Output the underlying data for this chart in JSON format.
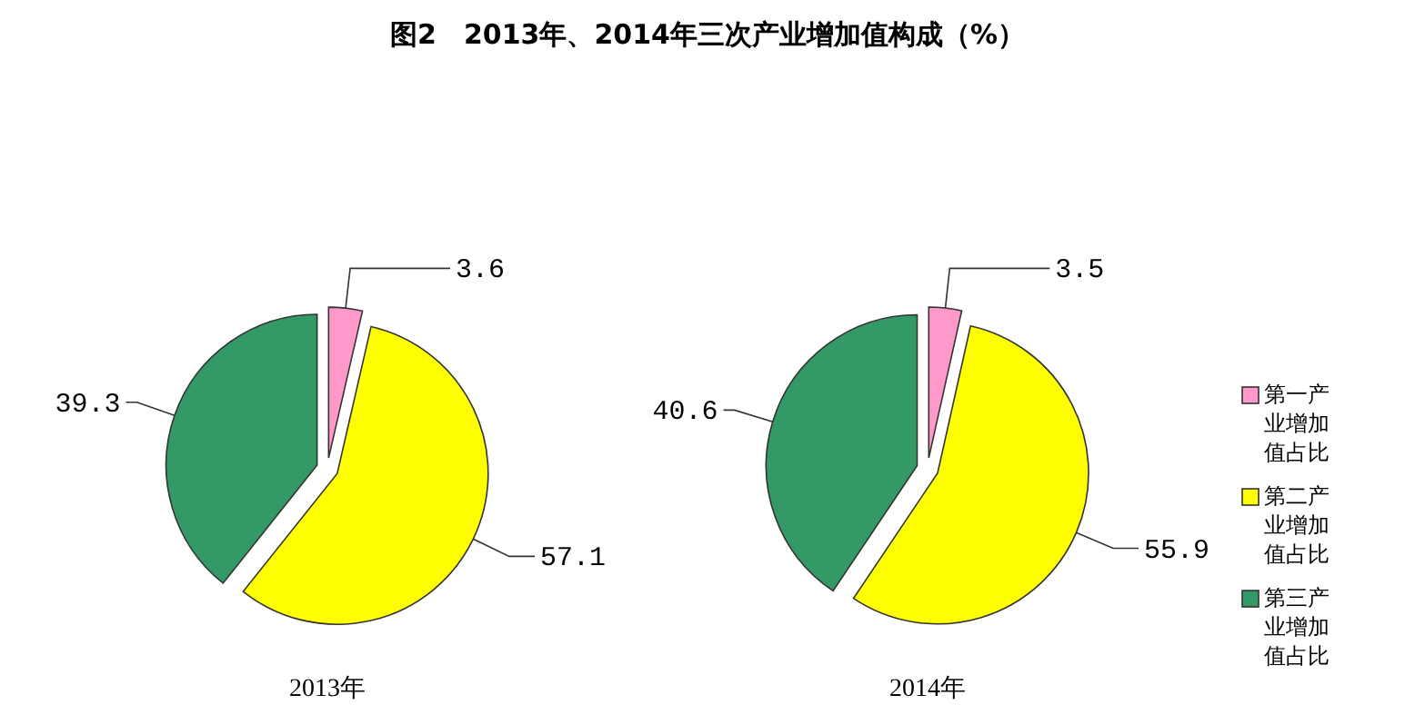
{
  "chart_data": [
    {
      "type": "pie",
      "title": "图2　2013年、2014年三次产业增加值构成（%）",
      "subtitle": "2013年",
      "categories": [
        null,
        null,
        null
      ],
      "values": [
        3.6,
        57.1,
        39.3
      ],
      "colors": [
        "#ff99cc",
        "#ffff00",
        "#339966"
      ],
      "data_labels": true
    },
    {
      "type": "pie",
      "subtitle": "2014年",
      "categories": [
        "第一产业增加值占比",
        "第二产业增加值占比",
        "第三产业增加值占比"
      ],
      "values": [
        3.5,
        55.9,
        40.6
      ],
      "colors": [
        "#ff99cc",
        "#ffff00",
        "#339966"
      ],
      "data_labels": true,
      "legend": "right"
    }
  ]
}
